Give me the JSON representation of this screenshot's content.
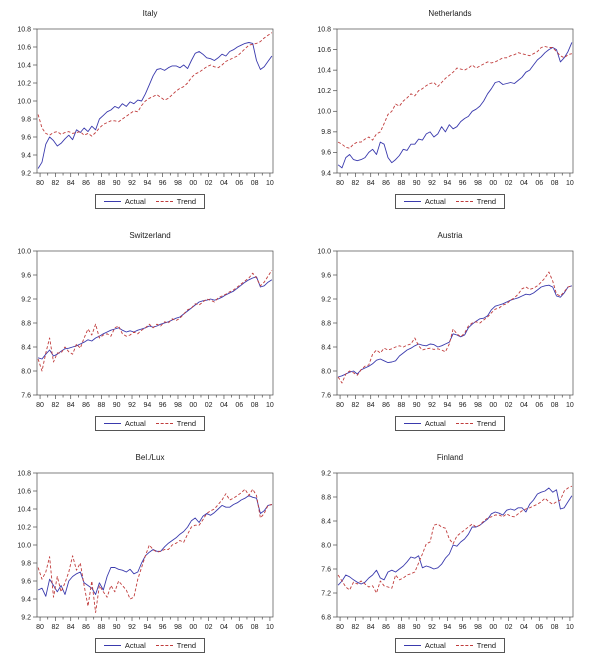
{
  "page": {
    "background": "#ffffff"
  },
  "legend": {
    "actual": "Actual",
    "trend": "Trend"
  },
  "colors": {
    "actual": "#3a3aad",
    "trend": "#c03c3c",
    "frame": "#4a4a4a",
    "text": "#1a1a1a"
  },
  "x_tick_labels": [
    "80",
    "82",
    "84",
    "86",
    "88",
    "90",
    "92",
    "94",
    "96",
    "98",
    "00",
    "02",
    "04",
    "06",
    "08",
    "10"
  ],
  "chart_data": [
    {
      "type": "line",
      "title": "Italy",
      "ylim": [
        9.2,
        10.8
      ],
      "ystep": 0.2,
      "x_start": 1979.75,
      "x_step": 0.5,
      "series": [
        {
          "name": "Actual",
          "values": [
            9.25,
            9.32,
            9.52,
            9.6,
            9.56,
            9.5,
            9.53,
            9.58,
            9.62,
            9.57,
            9.68,
            9.65,
            9.7,
            9.66,
            9.72,
            9.68,
            9.8,
            9.84,
            9.88,
            9.9,
            9.94,
            9.92,
            9.97,
            9.94,
            9.99,
            9.97,
            10.01,
            10.0,
            10.08,
            10.18,
            10.28,
            10.35,
            10.36,
            10.34,
            10.37,
            10.39,
            10.39,
            10.37,
            10.4,
            10.36,
            10.45,
            10.53,
            10.55,
            10.52,
            10.48,
            10.47,
            10.45,
            10.48,
            10.52,
            10.5,
            10.55,
            10.57,
            10.6,
            10.62,
            10.64,
            10.65,
            10.64,
            10.45,
            10.35,
            10.38,
            10.44,
            10.5
          ]
        },
        {
          "name": "Trend",
          "values": [
            9.85,
            9.7,
            9.64,
            9.62,
            9.65,
            9.66,
            9.63,
            9.65,
            9.66,
            9.64,
            9.65,
            9.66,
            9.62,
            9.64,
            9.61,
            9.65,
            9.7,
            9.74,
            9.76,
            9.78,
            9.78,
            9.77,
            9.8,
            9.83,
            9.86,
            9.89,
            9.88,
            9.95,
            10.0,
            10.03,
            10.05,
            10.07,
            10.04,
            10.01,
            10.03,
            10.07,
            10.11,
            10.14,
            10.16,
            10.2,
            10.26,
            10.3,
            10.32,
            10.35,
            10.38,
            10.4,
            10.38,
            10.37,
            10.4,
            10.44,
            10.46,
            10.48,
            10.5,
            10.54,
            10.58,
            10.62,
            10.63,
            10.64,
            10.66,
            10.7,
            10.73,
            10.76
          ]
        }
      ]
    },
    {
      "type": "line",
      "title": "Netherlands",
      "ylim": [
        9.4,
        10.8
      ],
      "ystep": 0.2,
      "x_start": 1979.75,
      "x_step": 0.5,
      "series": [
        {
          "name": "Actual",
          "values": [
            9.48,
            9.45,
            9.55,
            9.58,
            9.53,
            9.52,
            9.53,
            9.55,
            9.6,
            9.63,
            9.58,
            9.7,
            9.68,
            9.55,
            9.5,
            9.53,
            9.57,
            9.63,
            9.62,
            9.68,
            9.68,
            9.73,
            9.72,
            9.78,
            9.8,
            9.75,
            9.78,
            9.85,
            9.8,
            9.87,
            9.83,
            9.85,
            9.9,
            9.93,
            9.95,
            10.0,
            10.02,
            10.05,
            10.1,
            10.17,
            10.22,
            10.28,
            10.29,
            10.26,
            10.27,
            10.28,
            10.27,
            10.3,
            10.33,
            10.38,
            10.4,
            10.45,
            10.5,
            10.53,
            10.57,
            10.6,
            10.62,
            10.6,
            10.48,
            10.52,
            10.58,
            10.67
          ]
        },
        {
          "name": "Trend",
          "values": [
            9.7,
            9.68,
            9.65,
            9.64,
            9.68,
            9.7,
            9.7,
            9.73,
            9.75,
            9.72,
            9.78,
            9.8,
            9.88,
            9.97,
            10.0,
            10.07,
            10.05,
            10.1,
            10.13,
            10.17,
            10.15,
            10.2,
            10.22,
            10.25,
            10.27,
            10.28,
            10.24,
            10.28,
            10.32,
            10.35,
            10.38,
            10.42,
            10.41,
            10.4,
            10.42,
            10.45,
            10.42,
            10.44,
            10.46,
            10.48,
            10.47,
            10.48,
            10.5,
            10.52,
            10.52,
            10.54,
            10.55,
            10.57,
            10.56,
            10.55,
            10.54,
            10.56,
            10.58,
            10.62,
            10.63,
            10.62,
            10.62,
            10.58,
            10.54,
            10.52,
            10.55,
            10.56
          ]
        }
      ]
    },
    {
      "type": "line",
      "title": "Switzerland",
      "ylim": [
        7.6,
        10.0
      ],
      "ystep": 0.4,
      "x_start": 1979.75,
      "x_step": 0.5,
      "series": [
        {
          "name": "Actual",
          "values": [
            8.22,
            8.2,
            8.28,
            8.35,
            8.25,
            8.28,
            8.33,
            8.37,
            8.38,
            8.4,
            8.42,
            8.45,
            8.48,
            8.52,
            8.5,
            8.55,
            8.58,
            8.62,
            8.65,
            8.68,
            8.7,
            8.72,
            8.68,
            8.65,
            8.67,
            8.65,
            8.68,
            8.7,
            8.72,
            8.75,
            8.73,
            8.75,
            8.78,
            8.8,
            8.82,
            8.85,
            8.88,
            8.9,
            8.95,
            9.0,
            9.05,
            9.1,
            9.15,
            9.17,
            9.18,
            9.2,
            9.18,
            9.2,
            9.23,
            9.27,
            9.3,
            9.33,
            9.38,
            9.43,
            9.48,
            9.52,
            9.55,
            9.57,
            9.4,
            9.42,
            9.48,
            9.52
          ]
        },
        {
          "name": "Trend",
          "values": [
            8.2,
            8.0,
            8.3,
            8.55,
            8.15,
            8.3,
            8.3,
            8.4,
            8.32,
            8.28,
            8.45,
            8.38,
            8.55,
            8.7,
            8.6,
            8.78,
            8.55,
            8.6,
            8.62,
            8.58,
            8.72,
            8.75,
            8.62,
            8.58,
            8.6,
            8.65,
            8.62,
            8.68,
            8.72,
            8.78,
            8.72,
            8.78,
            8.75,
            8.82,
            8.8,
            8.87,
            8.84,
            8.88,
            8.95,
            9.02,
            9.05,
            9.12,
            9.1,
            9.15,
            9.2,
            9.18,
            9.15,
            9.22,
            9.25,
            9.28,
            9.32,
            9.35,
            9.4,
            9.45,
            9.5,
            9.55,
            9.63,
            9.55,
            9.42,
            9.48,
            9.58,
            9.68
          ]
        }
      ]
    },
    {
      "type": "line",
      "title": "Austria",
      "ylim": [
        7.6,
        10.0
      ],
      "ystep": 0.4,
      "x_start": 1979.75,
      "x_step": 0.5,
      "series": [
        {
          "name": "Actual",
          "values": [
            7.9,
            7.92,
            7.95,
            7.98,
            8.0,
            7.95,
            8.02,
            8.05,
            8.08,
            8.12,
            8.18,
            8.2,
            8.17,
            8.14,
            8.15,
            8.17,
            8.25,
            8.3,
            8.35,
            8.38,
            8.42,
            8.45,
            8.43,
            8.42,
            8.45,
            8.44,
            8.4,
            8.42,
            8.45,
            8.48,
            8.62,
            8.6,
            8.57,
            8.6,
            8.72,
            8.78,
            8.83,
            8.87,
            8.88,
            8.92,
            9.02,
            9.08,
            9.1,
            9.12,
            9.15,
            9.18,
            9.2,
            9.22,
            9.25,
            9.28,
            9.27,
            9.3,
            9.35,
            9.4,
            9.42,
            9.43,
            9.4,
            9.25,
            9.23,
            9.3,
            9.4,
            9.42
          ]
        },
        {
          "name": "Trend",
          "values": [
            7.9,
            7.8,
            7.95,
            8.0,
            7.97,
            7.93,
            8.02,
            8.08,
            8.1,
            8.28,
            8.35,
            8.3,
            8.38,
            8.35,
            8.37,
            8.4,
            8.42,
            8.4,
            8.43,
            8.45,
            8.55,
            8.42,
            8.35,
            8.37,
            8.38,
            8.36,
            8.37,
            8.35,
            8.32,
            8.45,
            8.7,
            8.62,
            8.57,
            8.63,
            8.75,
            8.8,
            8.82,
            8.8,
            8.85,
            8.9,
            8.97,
            9.03,
            9.05,
            9.1,
            9.12,
            9.18,
            9.22,
            9.28,
            9.37,
            9.4,
            9.36,
            9.38,
            9.42,
            9.48,
            9.55,
            9.65,
            9.5,
            9.28,
            9.25,
            9.32,
            9.4,
            9.42
          ]
        }
      ]
    },
    {
      "type": "line",
      "title": "Bel./Lux",
      "ylim": [
        9.2,
        10.8
      ],
      "ystep": 0.2,
      "x_start": 1979.75,
      "x_step": 0.5,
      "series": [
        {
          "name": "Actual",
          "values": [
            9.5,
            9.52,
            9.43,
            9.62,
            9.55,
            9.48,
            9.55,
            9.45,
            9.6,
            9.65,
            9.68,
            9.7,
            9.58,
            9.55,
            9.52,
            9.45,
            9.58,
            9.5,
            9.65,
            9.75,
            9.75,
            9.73,
            9.72,
            9.7,
            9.73,
            9.68,
            9.7,
            9.8,
            9.88,
            9.92,
            9.95,
            9.93,
            9.93,
            9.98,
            10.02,
            10.05,
            10.08,
            10.12,
            10.15,
            10.2,
            10.27,
            10.3,
            10.25,
            10.32,
            10.35,
            10.33,
            10.36,
            10.4,
            10.44,
            10.42,
            10.42,
            10.45,
            10.47,
            10.5,
            10.52,
            10.55,
            10.53,
            10.52,
            10.35,
            10.38,
            10.44,
            10.45
          ]
        },
        {
          "name": "Trend",
          "values": [
            9.75,
            9.62,
            9.7,
            9.87,
            9.42,
            9.65,
            9.48,
            9.58,
            9.7,
            9.88,
            9.72,
            9.8,
            9.55,
            9.32,
            9.6,
            9.25,
            9.55,
            9.48,
            9.42,
            9.55,
            9.48,
            9.6,
            9.55,
            9.5,
            9.4,
            9.42,
            9.62,
            9.75,
            9.88,
            10.0,
            9.95,
            9.92,
            9.93,
            9.95,
            9.95,
            10.0,
            10.02,
            10.05,
            10.03,
            10.12,
            10.2,
            10.22,
            10.22,
            10.28,
            10.35,
            10.38,
            10.4,
            10.45,
            10.5,
            10.57,
            10.5,
            10.52,
            10.55,
            10.58,
            10.62,
            10.55,
            10.62,
            10.55,
            10.3,
            10.35,
            10.44,
            10.45
          ]
        }
      ]
    },
    {
      "type": "line",
      "title": "Finland",
      "ylim": [
        6.8,
        9.2
      ],
      "ystep": 0.4,
      "x_start": 1979.75,
      "x_step": 0.5,
      "series": [
        {
          "name": "Actual",
          "values": [
            7.33,
            7.4,
            7.5,
            7.47,
            7.42,
            7.38,
            7.35,
            7.38,
            7.45,
            7.5,
            7.58,
            7.45,
            7.42,
            7.55,
            7.58,
            7.55,
            7.6,
            7.65,
            7.72,
            7.8,
            7.78,
            7.82,
            7.62,
            7.65,
            7.63,
            7.6,
            7.62,
            7.68,
            7.78,
            7.85,
            8.0,
            7.98,
            8.05,
            8.1,
            8.18,
            8.3,
            8.3,
            8.33,
            8.38,
            8.43,
            8.52,
            8.55,
            8.53,
            8.5,
            8.58,
            8.6,
            8.58,
            8.62,
            8.62,
            8.55,
            8.68,
            8.75,
            8.85,
            8.88,
            8.9,
            8.95,
            8.88,
            8.92,
            8.6,
            8.62,
            8.72,
            8.82
          ]
        },
        {
          "name": "Trend",
          "values": [
            7.5,
            7.4,
            7.3,
            7.25,
            7.38,
            7.35,
            7.4,
            7.35,
            7.3,
            7.32,
            7.2,
            7.4,
            7.32,
            7.3,
            7.28,
            7.5,
            7.42,
            7.45,
            7.5,
            7.52,
            7.55,
            7.7,
            7.85,
            8.02,
            8.05,
            8.33,
            8.35,
            8.3,
            8.28,
            8.1,
            8.02,
            8.15,
            8.2,
            8.25,
            8.3,
            8.35,
            8.3,
            8.33,
            8.4,
            8.45,
            8.47,
            8.5,
            8.5,
            8.47,
            8.52,
            8.48,
            8.47,
            8.52,
            8.57,
            8.6,
            8.62,
            8.65,
            8.68,
            8.72,
            8.78,
            8.72,
            8.68,
            8.72,
            8.75,
            8.9,
            8.95,
            8.98
          ]
        }
      ]
    }
  ]
}
